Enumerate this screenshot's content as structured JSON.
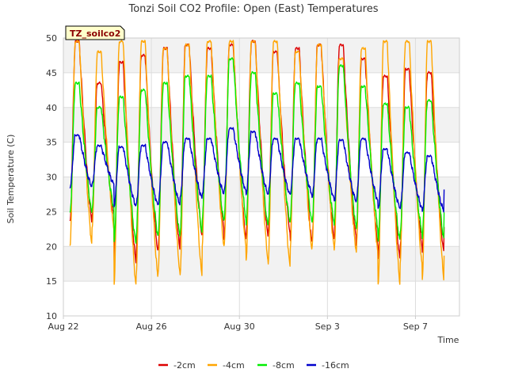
{
  "chart_data": {
    "type": "line",
    "title": "Tonzi Soil CO2 Profile: Open (East) Temperatures",
    "xlabel": "Time",
    "ylabel": "Soil Temperature (C)",
    "badge": "TZ_soilco2",
    "ylim": [
      10,
      50
    ],
    "yticks": [
      10,
      15,
      20,
      25,
      30,
      35,
      40,
      45,
      50
    ],
    "xlim_days": [
      0,
      18
    ],
    "xticks": [
      {
        "day": 0,
        "label": "Aug 22"
      },
      {
        "day": 4,
        "label": "Aug 26"
      },
      {
        "day": 8,
        "label": "Aug 30"
      },
      {
        "day": 12,
        "label": "Sep 3"
      },
      {
        "day": 16,
        "label": "Sep 7"
      }
    ],
    "grid": true,
    "legend_position": "bottom",
    "x_start_day": 0.3,
    "x_end_day": 17.3,
    "series": [
      {
        "name": "-2cm",
        "color": "#dd0000",
        "width": 1.4,
        "min": [
          23.5,
          24.5,
          17.8,
          19.2,
          19.5,
          21.5,
          22.5,
          21.0,
          21.5,
          22.0,
          20.5,
          21.0,
          21.5,
          20.0,
          18.2,
          20.0,
          19.0,
          22.8
        ],
        "max": [
          49.5,
          43.5,
          46.5,
          47.5,
          48.5,
          49.0,
          48.5,
          49.0,
          49.5,
          48.0,
          48.5,
          49.0,
          49.0,
          47.0,
          44.5,
          45.5,
          45.0,
          45.0
        ]
      },
      {
        "name": "-4cm",
        "color": "#ffa500",
        "width": 1.4,
        "min": [
          20.2,
          22.5,
          14.5,
          15.5,
          16.2,
          15.8,
          20.0,
          20.0,
          18.0,
          17.2,
          19.5,
          20.0,
          19.5,
          19.0,
          14.5,
          17.5,
          15.0,
          18.8
        ],
        "max": [
          49.5,
          48.0,
          49.5,
          49.5,
          48.5,
          49.0,
          49.5,
          49.5,
          49.5,
          49.5,
          48.0,
          49.0,
          47.0,
          48.5,
          49.5,
          49.5,
          49.5,
          49.5
        ]
      },
      {
        "name": "-8cm",
        "color": "#00ee00",
        "width": 1.4,
        "min": [
          24.8,
          25.5,
          20.5,
          21.5,
          21.5,
          22.0,
          23.5,
          24.0,
          23.0,
          23.5,
          23.5,
          23.5,
          23.0,
          22.5,
          20.8,
          22.0,
          21.0,
          24.8
        ],
        "max": [
          43.5,
          40.0,
          41.5,
          42.5,
          43.5,
          44.5,
          44.5,
          47.0,
          45.0,
          42.0,
          43.5,
          43.0,
          46.0,
          43.0,
          40.5,
          40.0,
          41.0,
          41.0
        ]
      },
      {
        "name": "-16cm",
        "color": "#0000cc",
        "width": 1.4,
        "min": [
          28.5,
          29.0,
          25.8,
          26.0,
          26.0,
          27.0,
          27.5,
          28.0,
          27.5,
          27.5,
          27.5,
          27.0,
          26.5,
          26.5,
          25.5,
          25.5,
          25.0,
          28.2
        ],
        "max": [
          36.0,
          34.5,
          34.3,
          34.5,
          35.0,
          35.5,
          35.5,
          37.0,
          36.5,
          35.5,
          35.5,
          35.5,
          35.3,
          35.5,
          34.0,
          33.5,
          33.0,
          33.3
        ]
      }
    ]
  }
}
